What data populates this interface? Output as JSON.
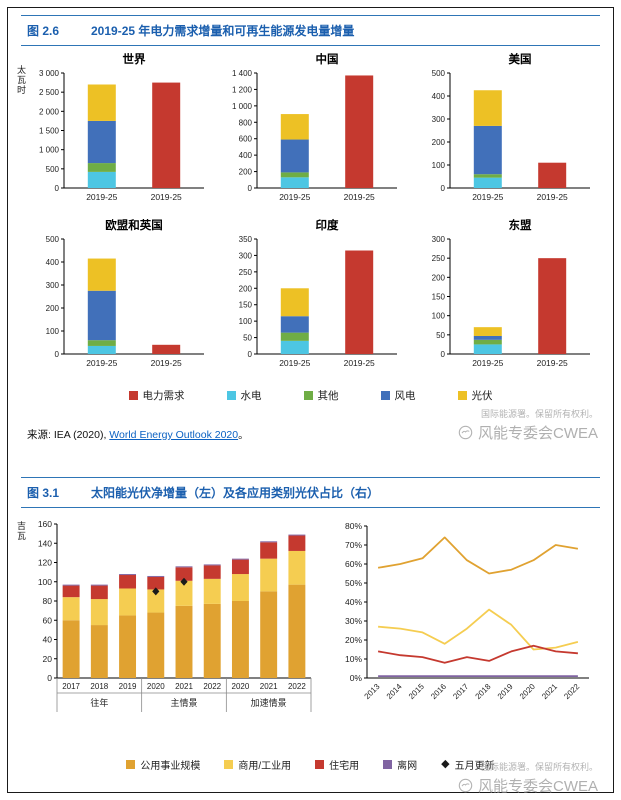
{
  "colors": {
    "电力需求": "#c5392f",
    "水电": "#4dc6e3",
    "其他": "#6fad45",
    "风电": "#4170ba",
    "光伏": "#edc125",
    "公用事业规模": "#e0a231",
    "商用/工业用": "#f5cd51",
    "住宅用": "#c5392f",
    "离网": "#8064a2",
    "五月更新": "#1a1a1a",
    "accent_blue": "#2e75b6",
    "header_text_blue": "#1b5fae",
    "link_blue": "#0b61c2",
    "watermark_grey": "#b3b3b3"
  },
  "fig26": {
    "tag": "图 2.6",
    "title": "2019-25 年电力需求增量和可再生能源发电量增量",
    "unit": "太瓦时",
    "legend": [
      {
        "label": "电力需求"
      },
      {
        "label": "水电"
      },
      {
        "label": "其他"
      },
      {
        "label": "风电"
      },
      {
        "label": "光伏"
      }
    ],
    "source": {
      "prefix": "来源: IEA (2020), ",
      "link": "World Energy Outlook 2020",
      "suffix": "。"
    },
    "watermark": {
      "line1": "国际能源署。保留所有权利。",
      "line2": "风能专委会CWEA"
    }
  },
  "fig31": {
    "tag": "图 3.1",
    "title": "太阳能光伏净增量（左）及各应用类别光伏占比（右）",
    "unit": "吉瓦",
    "legend": [
      {
        "label": "公用事业规模"
      },
      {
        "label": "商用/工业用"
      },
      {
        "label": "住宅用"
      },
      {
        "label": "离网"
      },
      {
        "label": "五月更新",
        "shape": "diamond"
      }
    ],
    "watermark": {
      "line1": "国际能源署。保留所有权利。",
      "line2": "风能专委会CWEA"
    }
  },
  "chart_data": [
    {
      "id": "world",
      "kind": "stack_demand",
      "type": "bar",
      "title": "世界",
      "ylabel": "太瓦时",
      "ylim": [
        0,
        3000
      ],
      "ystep": 500,
      "categories": [
        "2019-25",
        "2019-25"
      ],
      "stack": [
        [
          "水电",
          420
        ],
        [
          "其他",
          230
        ],
        [
          "风电",
          1100
        ],
        [
          "光伏",
          950
        ]
      ],
      "demand": 2750
    },
    {
      "id": "china",
      "kind": "stack_demand",
      "type": "bar",
      "title": "中国",
      "ylim": [
        0,
        1400
      ],
      "ystep": 200,
      "categories": [
        "2019-25",
        "2019-25"
      ],
      "stack": [
        [
          "水电",
          130
        ],
        [
          "其他",
          60
        ],
        [
          "风电",
          400
        ],
        [
          "光伏",
          310
        ]
      ],
      "demand": 1370
    },
    {
      "id": "usa",
      "kind": "stack_demand",
      "type": "bar",
      "title": "美国",
      "ylim": [
        0,
        500
      ],
      "ystep": 100,
      "categories": [
        "2019-25",
        "2019-25"
      ],
      "stack": [
        [
          "水电",
          45
        ],
        [
          "其他",
          15
        ],
        [
          "风电",
          210
        ],
        [
          "光伏",
          155
        ]
      ],
      "demand": 110
    },
    {
      "id": "eu-uk",
      "kind": "stack_demand",
      "type": "bar",
      "title": "欧盟和英国",
      "ylim": [
        0,
        500
      ],
      "ystep": 100,
      "categories": [
        "2019-25",
        "2019-25"
      ],
      "stack": [
        [
          "水电",
          35
        ],
        [
          "其他",
          25
        ],
        [
          "风电",
          215
        ],
        [
          "光伏",
          140
        ]
      ],
      "demand": 40
    },
    {
      "id": "india",
      "kind": "stack_demand",
      "type": "bar",
      "title": "印度",
      "ylim": [
        0,
        350
      ],
      "ystep": 50,
      "categories": [
        "2019-25",
        "2019-25"
      ],
      "stack": [
        [
          "水电",
          40
        ],
        [
          "其他",
          25
        ],
        [
          "风电",
          50
        ],
        [
          "光伏",
          85
        ]
      ],
      "demand": 315
    },
    {
      "id": "asean",
      "kind": "stack_demand",
      "type": "bar",
      "title": "东盟",
      "ylim": [
        0,
        300
      ],
      "ystep": 50,
      "categories": [
        "2019-25",
        "2019-25"
      ],
      "stack": [
        [
          "水电",
          25
        ],
        [
          "其他",
          12
        ],
        [
          "风电",
          10
        ],
        [
          "光伏",
          23
        ]
      ],
      "demand": 250
    },
    {
      "id": "pv-additions",
      "kind": "stacked_bars",
      "type": "bar",
      "ylabel": "吉瓦",
      "ylim": [
        0,
        160
      ],
      "ystep": 20,
      "categories": [
        "2017",
        "2018",
        "2019",
        "2020",
        "2021",
        "2022",
        "2020",
        "2021",
        "2022"
      ],
      "groups": [
        {
          "label": "往年",
          "span": 3
        },
        {
          "label": "主情景",
          "span": 3
        },
        {
          "label": "加速情景",
          "span": 3
        }
      ],
      "series": [
        {
          "name": "公用事业规模",
          "values": [
            60,
            55,
            65,
            68,
            75,
            77,
            80,
            90,
            97
          ]
        },
        {
          "name": "商用/工业用",
          "values": [
            24,
            27,
            28,
            24,
            26,
            26,
            28,
            34,
            35
          ]
        },
        {
          "name": "住宅用",
          "values": [
            12,
            14,
            14,
            13,
            14,
            14,
            15,
            17,
            16
          ]
        },
        {
          "name": "离网",
          "values": [
            1,
            1,
            1,
            1,
            1,
            1,
            1,
            1,
            1
          ]
        }
      ],
      "diamonds": {
        "name": "五月更新",
        "values": [
          null,
          null,
          null,
          90,
          100,
          null,
          null,
          null,
          null
        ]
      }
    },
    {
      "id": "pv-share",
      "kind": "lines",
      "type": "line",
      "ylim": [
        0,
        80
      ],
      "ystep": 10,
      "y_format": "percent",
      "x": [
        "2013",
        "2014",
        "2015",
        "2016",
        "2017",
        "2018",
        "2019",
        "2020",
        "2021",
        "2022"
      ],
      "series": [
        {
          "name": "公用事业规模",
          "values": [
            58,
            60,
            63,
            74,
            62,
            55,
            57,
            62,
            70,
            68
          ]
        },
        {
          "name": "商用/工业用",
          "values": [
            27,
            26,
            24,
            18,
            26,
            36,
            28,
            15,
            16,
            19
          ]
        },
        {
          "name": "住宅用",
          "values": [
            14,
            12,
            11,
            8,
            11,
            9,
            14,
            17,
            14,
            13
          ]
        },
        {
          "name": "离网",
          "values": [
            1,
            1,
            1,
            1,
            1,
            1,
            1,
            1,
            1,
            1
          ]
        }
      ]
    }
  ]
}
